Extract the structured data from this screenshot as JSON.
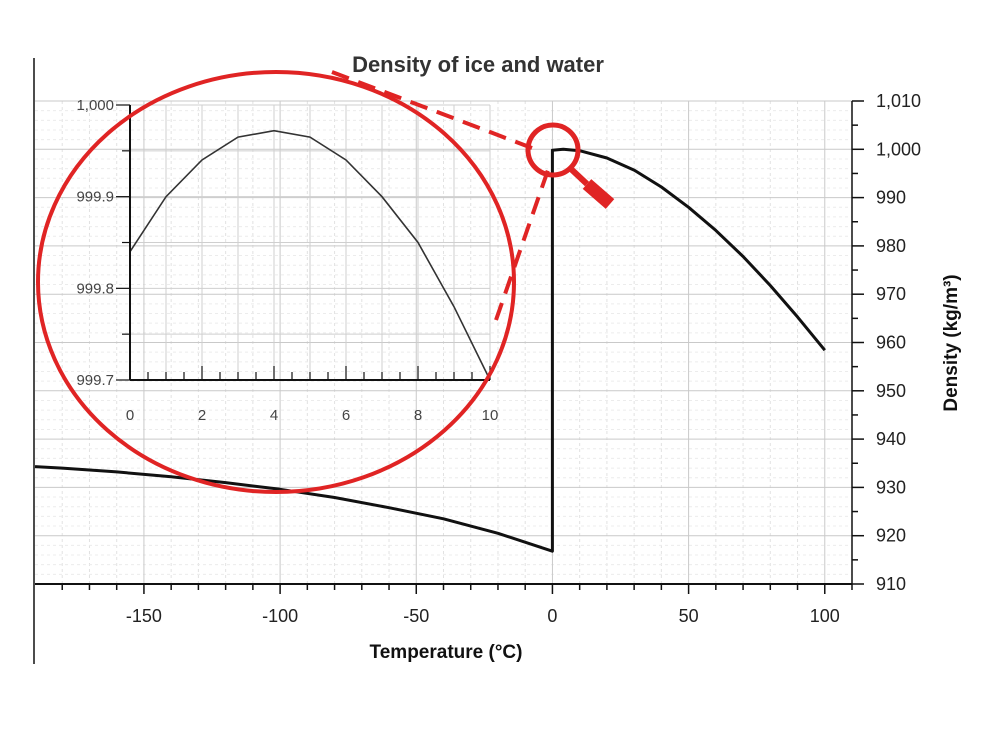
{
  "chart_data": [
    {
      "type": "line",
      "title": "Density of ice and water",
      "xlabel": "Temperature (°C)",
      "ylabel": "Density (kg/m³)",
      "xlim": [
        -190,
        110
      ],
      "ylim": [
        910,
        1010
      ],
      "x_ticks": [
        -150,
        -100,
        -50,
        0,
        50,
        100
      ],
      "x_tick_labels": [
        "-150",
        "-100",
        "-50",
        "0",
        "50",
        "100"
      ],
      "y_ticks": [
        910,
        920,
        930,
        940,
        950,
        960,
        970,
        980,
        990,
        1000,
        1010
      ],
      "y_tick_labels": [
        "910",
        "920",
        "930",
        "940",
        "950",
        "960",
        "970",
        "980",
        "990",
        "1,000",
        "1,010"
      ],
      "y_axis_position": "right",
      "grid": true,
      "series": [
        {
          "x": [
            -190,
            -180,
            -160,
            -140,
            -120,
            -100,
            -80,
            -60,
            -40,
            -20,
            0,
            0,
            4,
            10,
            20,
            30,
            40,
            50,
            60,
            70,
            80,
            90,
            100
          ],
          "y": [
            934.3,
            934.0,
            933.2,
            932.2,
            931.0,
            929.6,
            927.9,
            925.8,
            923.5,
            920.5,
            916.8,
            999.8,
            1000.0,
            999.7,
            998.2,
            995.7,
            992.2,
            988.0,
            983.2,
            977.8,
            971.8,
            965.3,
            958.4
          ]
        }
      ]
    },
    {
      "type": "line",
      "title": "",
      "xlim": [
        0,
        10
      ],
      "ylim": [
        999.7,
        1000.0
      ],
      "x_ticks": [
        0,
        2,
        4,
        6,
        8,
        10
      ],
      "x_tick_labels": [
        "0",
        "2",
        "4",
        "6",
        "8",
        "10"
      ],
      "y_ticks": [
        999.7,
        999.8,
        999.9,
        1000.0
      ],
      "y_tick_labels": [
        "999.7",
        "999.8",
        "999.9",
        "1,000"
      ],
      "grid": true,
      "series": [
        {
          "x": [
            0,
            1,
            2,
            3,
            4,
            5,
            6,
            7,
            8,
            9,
            10
          ],
          "y": [
            999.84,
            999.9,
            999.94,
            999.965,
            999.972,
            999.965,
            999.94,
            999.9,
            999.85,
            999.78,
            999.7
          ]
        }
      ]
    }
  ],
  "annotation": {
    "magnifier": "zoom-in",
    "color": "#e02424"
  }
}
